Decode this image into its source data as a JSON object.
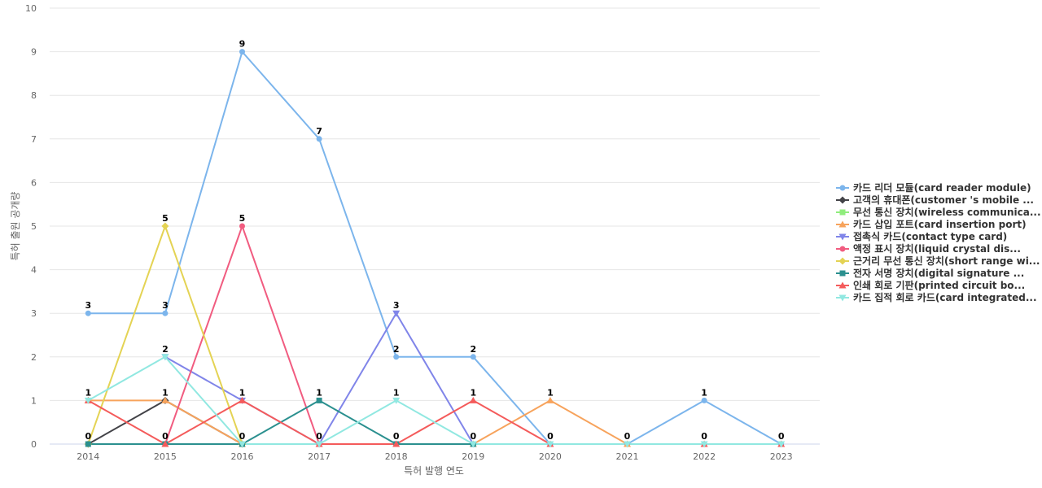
{
  "chart_data": {
    "type": "line",
    "title": "",
    "xlabel": "특허 발행 연도",
    "ylabel": "특허 출원 공개량",
    "categories": [
      "2014",
      "2015",
      "2016",
      "2017",
      "2018",
      "2019",
      "2020",
      "2021",
      "2022",
      "2023"
    ],
    "ylim": [
      0,
      10
    ],
    "yticks": [
      0,
      1,
      2,
      3,
      4,
      5,
      6,
      7,
      8,
      9,
      10
    ],
    "grid": true,
    "legend_position": "right",
    "series": [
      {
        "name": "카드 리더 모듈(card reader module)",
        "color": "#7cb5ec",
        "marker": "circle",
        "values": [
          3,
          3,
          9,
          7,
          2,
          2,
          0,
          0,
          1,
          0
        ]
      },
      {
        "name": "고객의 휴대폰(customer 's mobile ...",
        "color": "#434348",
        "marker": "diamond",
        "values": [
          0,
          1,
          0,
          null,
          null,
          null,
          null,
          null,
          null,
          null
        ]
      },
      {
        "name": "무선 통신 장치(wireless communica...",
        "color": "#90ed7d",
        "marker": "square",
        "values": [
          null,
          null,
          null,
          null,
          null,
          null,
          null,
          null,
          null,
          null
        ]
      },
      {
        "name": "카드 삽입 포트(card insertion port)",
        "color": "#f7a35c",
        "marker": "triangle",
        "values": [
          1,
          1,
          0,
          null,
          null,
          0,
          1,
          0,
          null,
          null
        ]
      },
      {
        "name": "접촉식 카드(contact type card)",
        "color": "#8085e9",
        "marker": "triangle-down",
        "values": [
          null,
          2,
          1,
          0,
          3,
          0,
          null,
          null,
          null,
          null
        ]
      },
      {
        "name": "액정 표시 장치(liquid crystal dis...",
        "color": "#f15c80",
        "marker": "circle",
        "values": [
          null,
          0,
          5,
          0,
          null,
          null,
          null,
          null,
          null,
          null
        ]
      },
      {
        "name": "근거리 무선 통신 장치(short range wi...",
        "color": "#e4d354",
        "marker": "diamond",
        "values": [
          0,
          5,
          0,
          null,
          null,
          null,
          null,
          null,
          null,
          null
        ]
      },
      {
        "name": "전자 서명 장치(digital signature ...",
        "color": "#2b908f",
        "marker": "square",
        "values": [
          0,
          0,
          0,
          1,
          0,
          0,
          null,
          null,
          null,
          null
        ]
      },
      {
        "name": "인쇄 회로 기판(printed circuit bo...",
        "color": "#f45b5b",
        "marker": "triangle",
        "values": [
          1,
          0,
          1,
          0,
          0,
          1,
          0,
          null,
          0,
          0
        ]
      },
      {
        "name": "카드 집적 회로 카드(card integrated...",
        "color": "#91e8e1",
        "marker": "triangle-down",
        "values": [
          1,
          2,
          0,
          0,
          1,
          0,
          0,
          0,
          0,
          0
        ]
      }
    ],
    "data_labels": [
      {
        "category": "2014",
        "value": 3,
        "text": "3"
      },
      {
        "category": "2014",
        "value": 1,
        "text": "1"
      },
      {
        "category": "2014",
        "value": 0,
        "text": "0"
      },
      {
        "category": "2015",
        "value": 5,
        "text": "5"
      },
      {
        "category": "2015",
        "value": 3,
        "text": "3"
      },
      {
        "category": "2015",
        "value": 2,
        "text": "2"
      },
      {
        "category": "2015",
        "value": 1,
        "text": "1"
      },
      {
        "category": "2015",
        "value": 0,
        "text": "0"
      },
      {
        "category": "2016",
        "value": 9,
        "text": "9"
      },
      {
        "category": "2016",
        "value": 5,
        "text": "5"
      },
      {
        "category": "2016",
        "value": 1,
        "text": "1"
      },
      {
        "category": "2016",
        "value": 0,
        "text": "0"
      },
      {
        "category": "2017",
        "value": 7,
        "text": "7"
      },
      {
        "category": "2017",
        "value": 1,
        "text": "1"
      },
      {
        "category": "2017",
        "value": 0,
        "text": "0"
      },
      {
        "category": "2018",
        "value": 3,
        "text": "3"
      },
      {
        "category": "2018",
        "value": 2,
        "text": "2"
      },
      {
        "category": "2018",
        "value": 1,
        "text": "1"
      },
      {
        "category": "2018",
        "value": 0,
        "text": "0"
      },
      {
        "category": "2019",
        "value": 2,
        "text": "2"
      },
      {
        "category": "2019",
        "value": 1,
        "text": "1"
      },
      {
        "category": "2019",
        "value": 0,
        "text": "0"
      },
      {
        "category": "2020",
        "value": 1,
        "text": "1"
      },
      {
        "category": "2020",
        "value": 0,
        "text": "0"
      },
      {
        "category": "2021",
        "value": 0,
        "text": "0"
      },
      {
        "category": "2022",
        "value": 1,
        "text": "1"
      },
      {
        "category": "2022",
        "value": 0,
        "text": "0"
      },
      {
        "category": "2023",
        "value": 0,
        "text": "0"
      }
    ]
  }
}
